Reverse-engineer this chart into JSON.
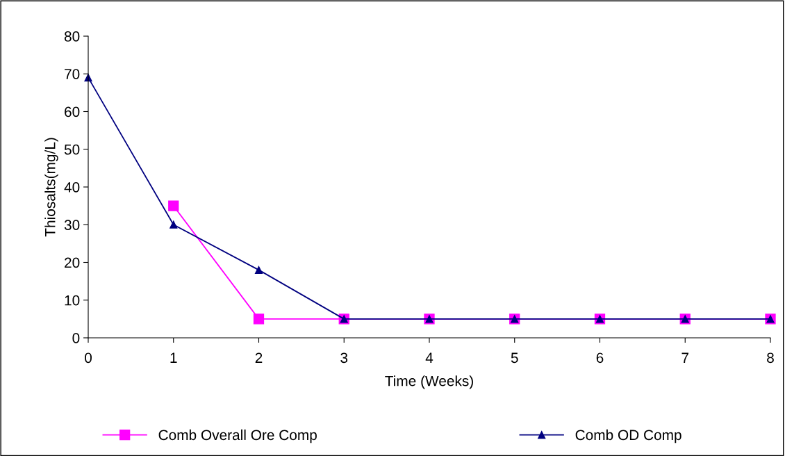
{
  "chart_data": {
    "type": "line",
    "xlabel": "Time (Weeks)",
    "ylabel": "Thiosalts(mg/L)",
    "series": [
      {
        "name": "Comb Overall Ore Comp",
        "color": "#ff00ff",
        "marker": "square",
        "x": [
          1,
          2,
          3,
          4,
          5,
          6,
          7,
          8
        ],
        "values": [
          35,
          5,
          5,
          5,
          5,
          5,
          5,
          5
        ]
      },
      {
        "name": "Comb OD Comp",
        "color": "#000080",
        "marker": "triangle",
        "x": [
          0,
          1,
          2,
          3,
          4,
          5,
          6,
          7,
          8
        ],
        "values": [
          69,
          30,
          18,
          5,
          5,
          5,
          5,
          5,
          5
        ]
      }
    ],
    "xlim": [
      0,
      8
    ],
    "xticks": [
      0,
      1,
      2,
      3,
      4,
      5,
      6,
      7,
      8
    ],
    "ylim": [
      0,
      80
    ],
    "yticks": [
      0,
      10,
      20,
      30,
      40,
      50,
      60,
      70,
      80
    ],
    "grid": false,
    "legend": "bottom",
    "line_style": "solid"
  }
}
